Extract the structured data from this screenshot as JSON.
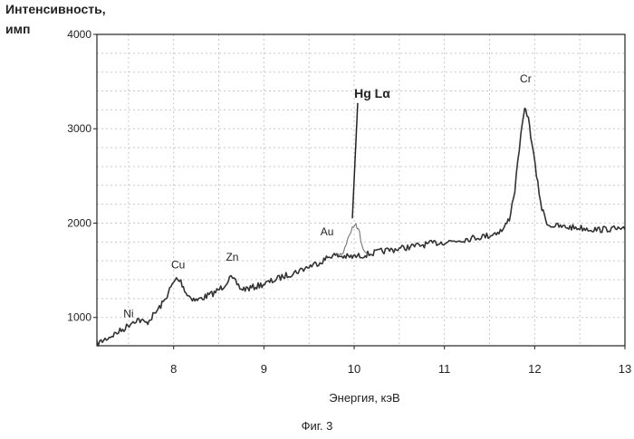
{
  "chart_data": {
    "type": "line",
    "ylabel_line1": "Интенсивность,",
    "ylabel_line2": "имп",
    "xlabel": "Энергия, кэВ",
    "caption": "Фиг. 3",
    "xlim": [
      7.15,
      13.0
    ],
    "ylim": [
      700,
      4000
    ],
    "grid": true,
    "x_ticks": [
      8,
      9,
      10,
      11,
      12,
      13
    ],
    "y_ticks": [
      1000,
      2000,
      3000,
      4000
    ],
    "series": [
      {
        "x": [
          7.15,
          7.3,
          7.45,
          7.55,
          7.6,
          7.7,
          7.8,
          7.9,
          7.97,
          8.03,
          8.08,
          8.15,
          8.25,
          8.35,
          8.45,
          8.55,
          8.62,
          8.67,
          8.75,
          8.85,
          8.95,
          9.05,
          9.2,
          9.35,
          9.5,
          9.65,
          9.75,
          9.85,
          9.95,
          10.05,
          10.15,
          10.3,
          10.5,
          10.7,
          10.9,
          11.1,
          11.3,
          11.5,
          11.65,
          11.72,
          11.78,
          11.83,
          11.88,
          11.9,
          11.93,
          11.97,
          12.02,
          12.08,
          12.15,
          12.3,
          12.5,
          12.7,
          12.85,
          13.0
        ],
        "y": [
          720,
          800,
          880,
          960,
          980,
          940,
          1050,
          1180,
          1320,
          1410,
          1380,
          1240,
          1180,
          1220,
          1260,
          1330,
          1420,
          1390,
          1300,
          1310,
          1340,
          1370,
          1430,
          1480,
          1540,
          1600,
          1660,
          1650,
          1640,
          1650,
          1670,
          1700,
          1730,
          1760,
          1790,
          1810,
          1840,
          1870,
          1930,
          2050,
          2350,
          2800,
          3150,
          3220,
          3100,
          2850,
          2500,
          2150,
          1980,
          1960,
          1950,
          1930,
          1940,
          1930
        ]
      },
      {
        "x": [
          9.8,
          9.88,
          9.93,
          9.98,
          10.02,
          10.06,
          10.1,
          10.15
        ],
        "y": [
          1640,
          1700,
          1830,
          1980,
          2000,
          1880,
          1720,
          1660
        ]
      }
    ],
    "annotations": [
      {
        "text": "Ni",
        "x": 7.5,
        "y": 1000
      },
      {
        "text": "Cu",
        "x": 8.05,
        "y": 1520
      },
      {
        "text": "Zn",
        "x": 8.65,
        "y": 1600
      },
      {
        "text": "Au",
        "x": 9.7,
        "y": 1870
      },
      {
        "text": "Hg Lα",
        "x": 10.2,
        "y": 3330
      },
      {
        "text": "Cr",
        "x": 11.9,
        "y": 3490
      }
    ]
  }
}
